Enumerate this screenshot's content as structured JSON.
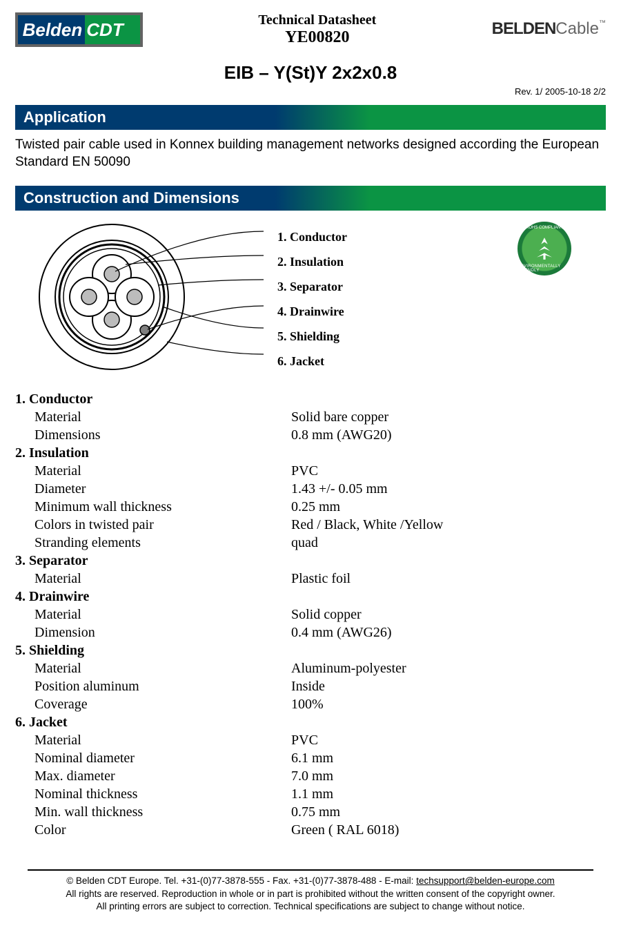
{
  "header": {
    "logo_left_text_1": "Belden",
    "logo_left_text_2": "CDT",
    "datasheet_label": "Technical Datasheet",
    "part_number": "YE00820",
    "logo_right_bold": "BELDEN",
    "logo_right_thin": "Cable",
    "logo_right_tm": "™"
  },
  "product_title": "EIB – Y(St)Y 2x2x0.8",
  "revision": "Rev. 1/ 2005-10-18  2/2",
  "sections": {
    "application": "Application",
    "construction": "Construction and Dimensions"
  },
  "application_text": "Twisted pair cable used in Konnex building management networks designed according the European Standard EN 50090",
  "diagram_labels": [
    "1. Conductor",
    "2. Insulation",
    "3. Separator",
    "4. Drainwire",
    "5. Shielding",
    "6. Jacket"
  ],
  "rohs": {
    "top": "ROHS COMPLIANT",
    "bottom": "ENVIRONMENTALLY FRIENDLY"
  },
  "specs": [
    {
      "h": "1. Conductor",
      "rows": [
        [
          "Material",
          "Solid bare copper"
        ],
        [
          "Dimensions",
          "0.8 mm (AWG20)"
        ]
      ]
    },
    {
      "h": "2. Insulation",
      "rows": [
        [
          "Material",
          "PVC"
        ],
        [
          "Diameter",
          "1.43 +/- 0.05 mm"
        ],
        [
          "Minimum wall thickness",
          "0.25 mm"
        ],
        [
          "Colors in twisted pair",
          "Red / Black, White /Yellow"
        ],
        [
          "Stranding elements",
          "quad"
        ]
      ]
    },
    {
      "h": "3. Separator",
      "rows": [
        [
          "Material",
          "Plastic foil"
        ]
      ]
    },
    {
      "h": "4. Drainwire",
      "rows": [
        [
          "Material",
          "Solid copper"
        ],
        [
          "Dimension",
          "0.4 mm (AWG26)"
        ]
      ]
    },
    {
      "h": "5. Shielding",
      "rows": [
        [
          "Material",
          "Aluminum-polyester"
        ],
        [
          "Position aluminum",
          "Inside"
        ],
        [
          "Coverage",
          "100%"
        ]
      ]
    },
    {
      "h": "6. Jacket",
      "rows": [
        [
          "Material",
          "PVC"
        ],
        [
          "Nominal diameter",
          "6.1  mm"
        ],
        [
          "Max. diameter",
          "7.0  mm"
        ],
        [
          "Nominal thickness",
          "1.1 mm"
        ],
        [
          "Min. wall thickness",
          "0.75 mm"
        ],
        [
          "Color",
          "Green ( RAL 6018)"
        ]
      ]
    }
  ],
  "footer": {
    "line1_pre": "© Belden CDT Europe. Tel. +31-(0)77-3878-555 - Fax. +31-(0)77-3878-488 - E-mail: ",
    "email": "techsupport@belden-europe.com",
    "line2": "All rights are reserved. Reproduction in whole or in part is prohibited without the written consent of the copyright owner.",
    "line3": "All printing errors are subject to correction. Technical specifications are subject to change without notice."
  },
  "colors": {
    "navy": "#003b6f",
    "green": "#0b9444",
    "grey": "#636363"
  }
}
